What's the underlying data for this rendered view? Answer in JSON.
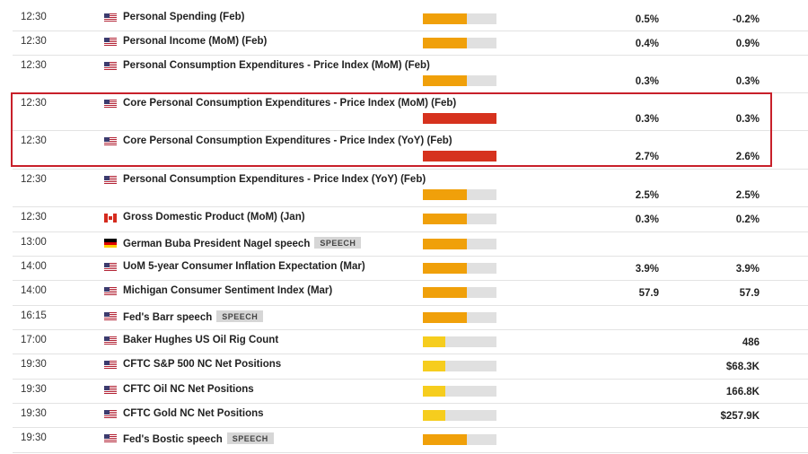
{
  "colors": {
    "medium": "#f0a00a",
    "low": "#f6cd1e",
    "high": "#d6321e",
    "bar_track": "#e0e0e0",
    "highlight_border": "#c8202a"
  },
  "impact_levels": {
    "medium": 0.6,
    "low": 0.3,
    "high": 1.0
  },
  "events": [
    {
      "time": "12:30",
      "country": "us",
      "name": "Personal Spending (Feb)",
      "impact": "medium",
      "actual": "0.5%",
      "previous": "-0.2%"
    },
    {
      "time": "12:30",
      "country": "us",
      "name": "Personal Income (MoM) (Feb)",
      "impact": "medium",
      "actual": "0.4%",
      "previous": "0.9%"
    },
    {
      "time": "12:30",
      "country": "us",
      "name": "Personal Consumption Expenditures - Price Index (MoM) (Feb)",
      "impact": "medium",
      "actual": "0.3%",
      "previous": "0.3%"
    },
    {
      "time": "12:30",
      "country": "us",
      "name": "Core Personal Consumption Expenditures - Price Index (MoM) (Feb)",
      "impact": "high",
      "actual": "0.3%",
      "previous": "0.3%"
    },
    {
      "time": "12:30",
      "country": "us",
      "name": "Core Personal Consumption Expenditures - Price Index (YoY) (Feb)",
      "impact": "high",
      "actual": "2.7%",
      "previous": "2.6%"
    },
    {
      "time": "12:30",
      "country": "us",
      "name": "Personal Consumption Expenditures - Price Index (YoY) (Feb)",
      "impact": "medium",
      "actual": "2.5%",
      "previous": "2.5%"
    },
    {
      "time": "12:30",
      "country": "ca",
      "name": "Gross Domestic Product (MoM) (Jan)",
      "impact": "medium",
      "actual": "0.3%",
      "previous": "0.2%"
    },
    {
      "time": "13:00",
      "country": "de",
      "name": "German Buba President Nagel speech",
      "tag": "SPEECH",
      "impact": "medium",
      "actual": "",
      "previous": ""
    },
    {
      "time": "14:00",
      "country": "us",
      "name": "UoM 5-year Consumer Inflation Expectation (Mar)",
      "impact": "medium",
      "actual": "3.9%",
      "previous": "3.9%"
    },
    {
      "time": "14:00",
      "country": "us",
      "name": "Michigan Consumer Sentiment Index (Mar)",
      "impact": "medium",
      "actual": "57.9",
      "previous": "57.9"
    },
    {
      "time": "16:15",
      "country": "us",
      "name": "Fed's Barr speech",
      "tag": "SPEECH",
      "impact": "medium",
      "actual": "",
      "previous": ""
    },
    {
      "time": "17:00",
      "country": "us",
      "name": "Baker Hughes US Oil Rig Count",
      "impact": "low",
      "actual": "",
      "previous": "486"
    },
    {
      "time": "19:30",
      "country": "us",
      "name": "CFTC S&P 500 NC Net Positions",
      "impact": "low",
      "actual": "",
      "previous": "$68.3K"
    },
    {
      "time": "19:30",
      "country": "us",
      "name": "CFTC Oil NC Net Positions",
      "impact": "low",
      "actual": "",
      "previous": "166.8K"
    },
    {
      "time": "19:30",
      "country": "us",
      "name": "CFTC Gold NC Net Positions",
      "impact": "low",
      "actual": "",
      "previous": "$257.9K"
    },
    {
      "time": "19:30",
      "country": "us",
      "name": "Fed's Bostic speech",
      "tag": "SPEECH",
      "impact": "medium",
      "actual": "",
      "previous": ""
    }
  ]
}
